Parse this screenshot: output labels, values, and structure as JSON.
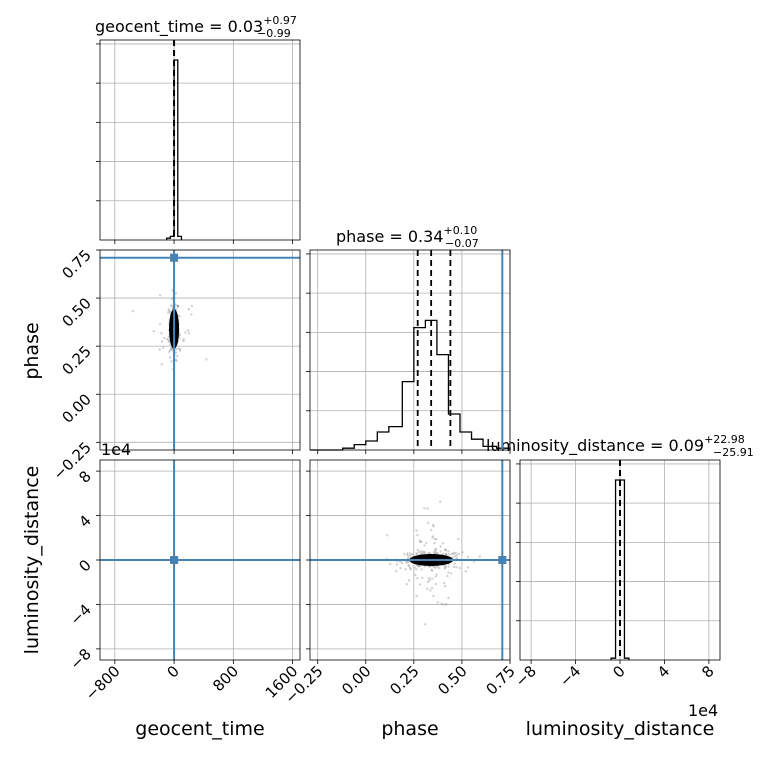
{
  "chart_data": {
    "type": "corner",
    "parameters": [
      "geocent_time",
      "phase",
      "luminosity_distance"
    ],
    "truths": {
      "geocent_time": 0,
      "phase": 0.71,
      "luminosity_distance": 0
    },
    "titles": [
      {
        "param": "geocent_time",
        "text": "geocent_time = 0.03",
        "plus": "+0.97",
        "minus": "−0.99"
      },
      {
        "param": "phase",
        "text": "phase = 0.34",
        "plus": "+0.10",
        "minus": "−0.07"
      },
      {
        "param": "luminosity_distance",
        "text": "luminosity_distance = 0.09",
        "plus": "+22.98",
        "minus": "−25.91"
      }
    ],
    "axis_labels": {
      "x": [
        "geocent_time",
        "phase",
        "luminosity_distance"
      ],
      "y": [
        "phase",
        "luminosity_distance"
      ]
    },
    "exponent_labels": {
      "luminosity_distance_y": "1e4",
      "luminosity_distance_x": "1e4"
    },
    "ticks": {
      "geocent_time": [
        "−800",
        "0",
        "800",
        "1600"
      ],
      "phase": [
        "−0.25",
        "0.00",
        "0.25",
        "0.50",
        "0.75"
      ],
      "luminosity_distance": [
        "−8",
        "−4",
        "0",
        "4",
        "8"
      ]
    },
    "ranges": {
      "geocent_time": [
        -1000,
        1700
      ],
      "phase": [
        -0.29,
        0.75
      ],
      "luminosity_distance": [
        -9,
        9
      ]
    },
    "hist_geocent_time": {
      "bins": [
        [
          -100,
          -50,
          0.01
        ],
        [
          -50,
          0,
          0.02
        ],
        [
          0,
          50,
          1.0
        ],
        [
          50,
          100,
          0.02
        ]
      ],
      "quantiles": [
        -0.96,
        0.03,
        1.0
      ]
    },
    "hist_phase": {
      "bins": [
        [
          -0.29,
          -0.12,
          0.0
        ],
        [
          -0.12,
          -0.06,
          0.01
        ],
        [
          -0.06,
          0.0,
          0.03
        ],
        [
          0.0,
          0.06,
          0.05
        ],
        [
          0.06,
          0.12,
          0.1
        ],
        [
          0.12,
          0.19,
          0.13
        ],
        [
          0.19,
          0.25,
          0.38
        ],
        [
          0.25,
          0.31,
          0.68
        ],
        [
          0.31,
          0.37,
          0.72
        ],
        [
          0.37,
          0.43,
          0.53
        ],
        [
          0.43,
          0.49,
          0.2
        ],
        [
          0.49,
          0.55,
          0.1
        ],
        [
          0.55,
          0.61,
          0.06
        ],
        [
          0.61,
          0.68,
          0.02
        ],
        [
          0.68,
          0.75,
          0.01
        ]
      ],
      "quantiles": [
        0.27,
        0.34,
        0.44
      ]
    },
    "hist_luminosity_distance": {
      "bins": [
        [
          -0.8,
          -0.4,
          0.01
        ],
        [
          -0.4,
          0.0,
          1.0
        ],
        [
          0.0,
          0.4,
          1.0
        ],
        [
          0.4,
          0.8,
          0.01
        ]
      ],
      "quantiles": [
        -0.0026,
        0.0,
        0.0023
      ]
    }
  }
}
